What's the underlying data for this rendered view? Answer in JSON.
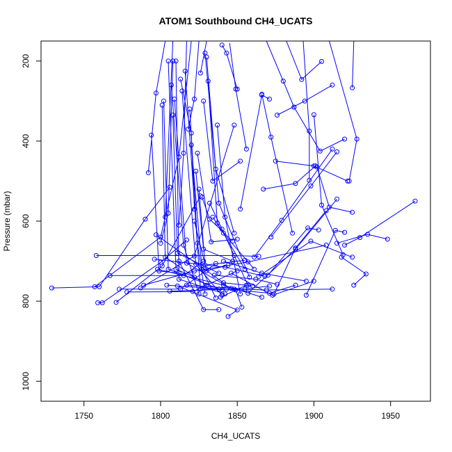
{
  "chart_data": {
    "type": "line",
    "title": "ATOM1 Southbound CH4_UCATS",
    "xlabel": "CH4_UCATS",
    "ylabel": "Pressure (mbar)",
    "xlim": [
      1722,
      1976
    ],
    "ylim": [
      1050,
      150
    ],
    "y_reversed": true,
    "x_ticks": [
      1750,
      1800,
      1850,
      1900,
      1950
    ],
    "y_ticks": [
      200,
      400,
      600,
      800,
      1000
    ],
    "x_tick_labels": [
      "1750",
      "1800",
      "1850",
      "1900",
      "1950"
    ],
    "y_tick_labels": [
      "200",
      "400",
      "600",
      "800",
      "1000"
    ],
    "series_color": "#0000ff",
    "marker": "open-circle",
    "grid": false,
    "series": [
      {
        "points": [
          [
            1729,
            767
          ],
          [
            1760,
            764
          ],
          [
            1790,
            595
          ],
          [
            1806,
            515
          ]
        ]
      },
      {
        "points": [
          [
            1757,
            764
          ],
          [
            1800,
            640
          ],
          [
            1812,
            440
          ],
          [
            1820,
            150
          ]
        ]
      },
      {
        "points": [
          [
            1758,
            686
          ],
          [
            1848,
            686
          ],
          [
            1864,
            688
          ]
        ]
      },
      {
        "points": [
          [
            1759,
            804
          ],
          [
            1762,
            804
          ],
          [
            1800,
            703
          ],
          [
            1817,
            647
          ]
        ]
      },
      {
        "points": [
          [
            1767,
            736
          ],
          [
            1815,
            736
          ],
          [
            1828,
            700
          ]
        ]
      },
      {
        "points": [
          [
            1771,
            803
          ],
          [
            1801,
            712
          ],
          [
            1826,
            537
          ]
        ]
      },
      {
        "points": [
          [
            1773,
            770
          ],
          [
            1813,
            770
          ],
          [
            1836,
            706
          ]
        ]
      },
      {
        "points": [
          [
            1778,
            777
          ],
          [
            1821,
            776
          ],
          [
            1850,
            724
          ]
        ]
      },
      {
        "points": [
          [
            1787,
            767
          ],
          [
            1822,
            687
          ],
          [
            1848,
            360
          ]
        ]
      },
      {
        "points": [
          [
            1789,
            760
          ],
          [
            1822,
            725
          ],
          [
            1857,
            702
          ],
          [
            1908,
            660
          ]
        ]
      },
      {
        "points": [
          [
            1792,
            479
          ],
          [
            1797,
            280
          ],
          [
            1803,
            150
          ]
        ]
      },
      {
        "points": [
          [
            1794,
            385
          ],
          [
            1799,
            725
          ],
          [
            1812,
            730
          ]
        ]
      },
      {
        "points": [
          [
            1796,
            695
          ],
          [
            1842,
            715
          ],
          [
            1868,
            738
          ]
        ]
      },
      {
        "points": [
          [
            1797,
            634
          ],
          [
            1841,
            754
          ],
          [
            1860,
            762
          ]
        ]
      },
      {
        "points": [
          [
            1798,
            720
          ],
          [
            1841,
            760
          ],
          [
            1866,
            790
          ]
        ]
      },
      {
        "points": [
          [
            1800,
            655
          ],
          [
            1805,
            580
          ],
          [
            1808,
            200
          ]
        ]
      },
      {
        "points": [
          [
            1801,
            310
          ],
          [
            1803,
            690
          ],
          [
            1830,
            760
          ]
        ]
      },
      {
        "points": [
          [
            1802,
            300
          ],
          [
            1805,
            720
          ],
          [
            1840,
            772
          ]
        ]
      },
      {
        "points": [
          [
            1803,
            590
          ],
          [
            1808,
            150
          ]
        ]
      },
      {
        "points": [
          [
            1804,
            760
          ],
          [
            1849,
            772
          ],
          [
            1853,
            815
          ]
        ]
      },
      {
        "points": [
          [
            1805,
            200
          ],
          [
            1810,
            720
          ],
          [
            1822,
            740
          ]
        ]
      },
      {
        "points": [
          [
            1806,
            775
          ],
          [
            1848,
            770
          ],
          [
            1869,
            772
          ],
          [
            1912,
            770
          ]
        ]
      },
      {
        "points": [
          [
            1807,
            260
          ],
          [
            1815,
            660
          ],
          [
            1825,
            782
          ]
        ]
      },
      {
        "points": [
          [
            1808,
            335
          ],
          [
            1811,
            680
          ],
          [
            1838,
            730
          ]
        ]
      },
      {
        "points": [
          [
            1809,
            295
          ],
          [
            1817,
            705
          ],
          [
            1846,
            768
          ]
        ]
      },
      {
        "points": [
          [
            1810,
            200
          ],
          [
            1812,
            745
          ],
          [
            1842,
            782
          ]
        ]
      },
      {
        "points": [
          [
            1811,
            762
          ],
          [
            1850,
            822
          ],
          [
            1844,
            838
          ]
        ]
      },
      {
        "points": [
          [
            1812,
            700
          ],
          [
            1828,
            821
          ],
          [
            1838,
            821
          ]
        ]
      },
      {
        "points": [
          [
            1813,
            245
          ],
          [
            1820,
            380
          ],
          [
            1822,
            570
          ]
        ]
      },
      {
        "points": [
          [
            1814,
            275
          ],
          [
            1823,
            708
          ],
          [
            1840,
            785
          ]
        ]
      },
      {
        "points": [
          [
            1816,
            225
          ],
          [
            1826,
            770
          ],
          [
            1838,
            770
          ]
        ]
      },
      {
        "points": [
          [
            1817,
            760
          ],
          [
            1855,
            770
          ],
          [
            1871,
            762
          ]
        ]
      },
      {
        "points": [
          [
            1819,
            320
          ],
          [
            1824,
            655
          ],
          [
            1829,
            782
          ]
        ]
      },
      {
        "points": [
          [
            1820,
            410
          ],
          [
            1827,
            720
          ],
          [
            1836,
            792
          ]
        ]
      },
      {
        "points": [
          [
            1822,
            600
          ],
          [
            1830,
            724
          ],
          [
            1844,
            710
          ]
        ]
      },
      {
        "points": [
          [
            1823,
            475
          ],
          [
            1828,
            670
          ],
          [
            1847,
            700
          ]
        ]
      },
      {
        "points": [
          [
            1824,
            430
          ],
          [
            1833,
            652
          ],
          [
            1850,
            645
          ]
        ]
      },
      {
        "points": [
          [
            1825,
            520
          ],
          [
            1829,
            710
          ],
          [
            1855,
            698
          ]
        ]
      },
      {
        "points": [
          [
            1826,
            230
          ],
          [
            1830,
            150
          ]
        ]
      },
      {
        "points": [
          [
            1827,
            540
          ],
          [
            1832,
            595
          ],
          [
            1847,
            650
          ]
        ]
      },
      {
        "points": [
          [
            1828,
            300
          ],
          [
            1834,
            500
          ],
          [
            1852,
            450
          ]
        ]
      },
      {
        "points": [
          [
            1829,
            180
          ],
          [
            1838,
            555
          ],
          [
            1858,
            740
          ]
        ]
      },
      {
        "points": [
          [
            1830,
            190
          ],
          [
            1836,
            470
          ],
          [
            1848,
            630
          ]
        ]
      },
      {
        "points": [
          [
            1831,
            250
          ],
          [
            1837,
            605
          ],
          [
            1855,
            720
          ]
        ]
      },
      {
        "points": [
          [
            1832,
            555
          ],
          [
            1840,
            620
          ],
          [
            1857,
            760
          ]
        ]
      },
      {
        "points": [
          [
            1834,
            590
          ],
          [
            1841,
            630
          ],
          [
            1861,
            720
          ]
        ]
      },
      {
        "points": [
          [
            1835,
            735
          ],
          [
            1862,
            745
          ],
          [
            1876,
            758
          ]
        ]
      },
      {
        "points": [
          [
            1837,
            360
          ],
          [
            1842,
            590
          ],
          [
            1852,
            782
          ]
        ]
      },
      {
        "points": [
          [
            1839,
            790
          ],
          [
            1856,
            760
          ]
        ]
      },
      {
        "points": [
          [
            1840,
            160
          ],
          [
            1843,
            180
          ],
          [
            1850,
            270
          ]
        ]
      },
      {
        "points": [
          [
            1841,
            700
          ],
          [
            1866,
            730
          ],
          [
            1895,
            750
          ]
        ]
      },
      {
        "points": [
          [
            1843,
            770
          ],
          [
            1871,
            780
          ],
          [
            1888,
            760
          ]
        ]
      },
      {
        "points": [
          [
            1845,
            155
          ],
          [
            1849,
            270
          ],
          [
            1856,
            420
          ]
        ]
      },
      {
        "points": [
          [
            1846,
            730
          ],
          [
            1873,
            785
          ],
          [
            1900,
            750
          ]
        ]
      },
      {
        "points": [
          [
            1852,
            570
          ],
          [
            1866,
            285
          ],
          [
            1871,
            295
          ]
        ]
      },
      {
        "points": [
          [
            1857,
            780
          ],
          [
            1888,
            670
          ],
          [
            1915,
            545
          ]
        ]
      },
      {
        "points": [
          [
            1861,
            690
          ],
          [
            1879,
            598
          ],
          [
            1912,
            420
          ]
        ]
      },
      {
        "points": [
          [
            1864,
            738
          ],
          [
            1898,
            650
          ],
          [
            1925,
            690
          ]
        ]
      },
      {
        "points": [
          [
            1866,
            283
          ],
          [
            1872,
            390
          ],
          [
            1886,
            630
          ]
        ]
      },
      {
        "points": [
          [
            1867,
            520
          ],
          [
            1888,
            506
          ],
          [
            1901,
            462
          ]
        ]
      },
      {
        "points": [
          [
            1870,
            735
          ],
          [
            1896,
            617
          ],
          [
            1903,
            622
          ]
        ]
      },
      {
        "points": [
          [
            1872,
            640
          ],
          [
            1898,
            512
          ],
          [
            1915,
            427
          ]
        ]
      },
      {
        "points": [
          [
            1874,
            782
          ],
          [
            1888,
            667
          ],
          [
            1908,
            574
          ]
        ]
      },
      {
        "points": [
          [
            1875,
            450
          ],
          [
            1900,
            462
          ],
          [
            1922,
            500
          ]
        ]
      },
      {
        "points": [
          [
            1876,
            335
          ],
          [
            1894,
            300
          ],
          [
            1912,
            260
          ]
        ]
      },
      {
        "points": [
          [
            1882,
            150
          ],
          [
            1892,
            246
          ],
          [
            1905,
            201
          ]
        ]
      },
      {
        "points": [
          [
            1887,
            315
          ],
          [
            1904,
            425
          ],
          [
            1920,
            395
          ]
        ]
      },
      {
        "points": [
          [
            1893,
            150
          ],
          [
            1897,
            375
          ],
          [
            1897,
            498
          ]
        ]
      },
      {
        "points": [
          [
            1895,
            785
          ],
          [
            1914,
            623
          ],
          [
            1920,
            628
          ]
        ]
      },
      {
        "points": [
          [
            1900,
            334
          ],
          [
            1905,
            560
          ],
          [
            1919,
            684
          ]
        ]
      },
      {
        "points": [
          [
            1902,
            465
          ],
          [
            1910,
            565
          ],
          [
            1925,
            578
          ]
        ]
      },
      {
        "points": [
          [
            1910,
            150
          ],
          [
            1928,
            395
          ],
          [
            1923,
            500
          ]
        ]
      },
      {
        "points": [
          [
            1915,
            655
          ],
          [
            1935,
            633
          ],
          [
            1948,
            645
          ]
        ]
      },
      {
        "points": [
          [
            1918,
            690
          ],
          [
            1934,
            732
          ],
          [
            1926,
            760
          ]
        ]
      },
      {
        "points": [
          [
            1920,
            660
          ],
          [
            1930,
            641
          ],
          [
            1966,
            550
          ]
        ]
      },
      {
        "points": [
          [
            1926,
            150
          ],
          [
            1925,
            267
          ]
        ]
      },
      {
        "points": [
          [
            1932,
            150
          ],
          [
            1962,
            150
          ]
        ]
      },
      {
        "points": [
          [
            1869,
            150
          ],
          [
            1880,
            250
          ],
          [
            1887,
            315
          ]
        ]
      },
      {
        "points": [
          [
            1818,
            370
          ],
          [
            1822,
            295
          ],
          [
            1825,
            150
          ]
        ]
      },
      {
        "points": [
          [
            1812,
            610
          ],
          [
            1815,
            430
          ],
          [
            1817,
            150
          ]
        ]
      }
    ]
  }
}
